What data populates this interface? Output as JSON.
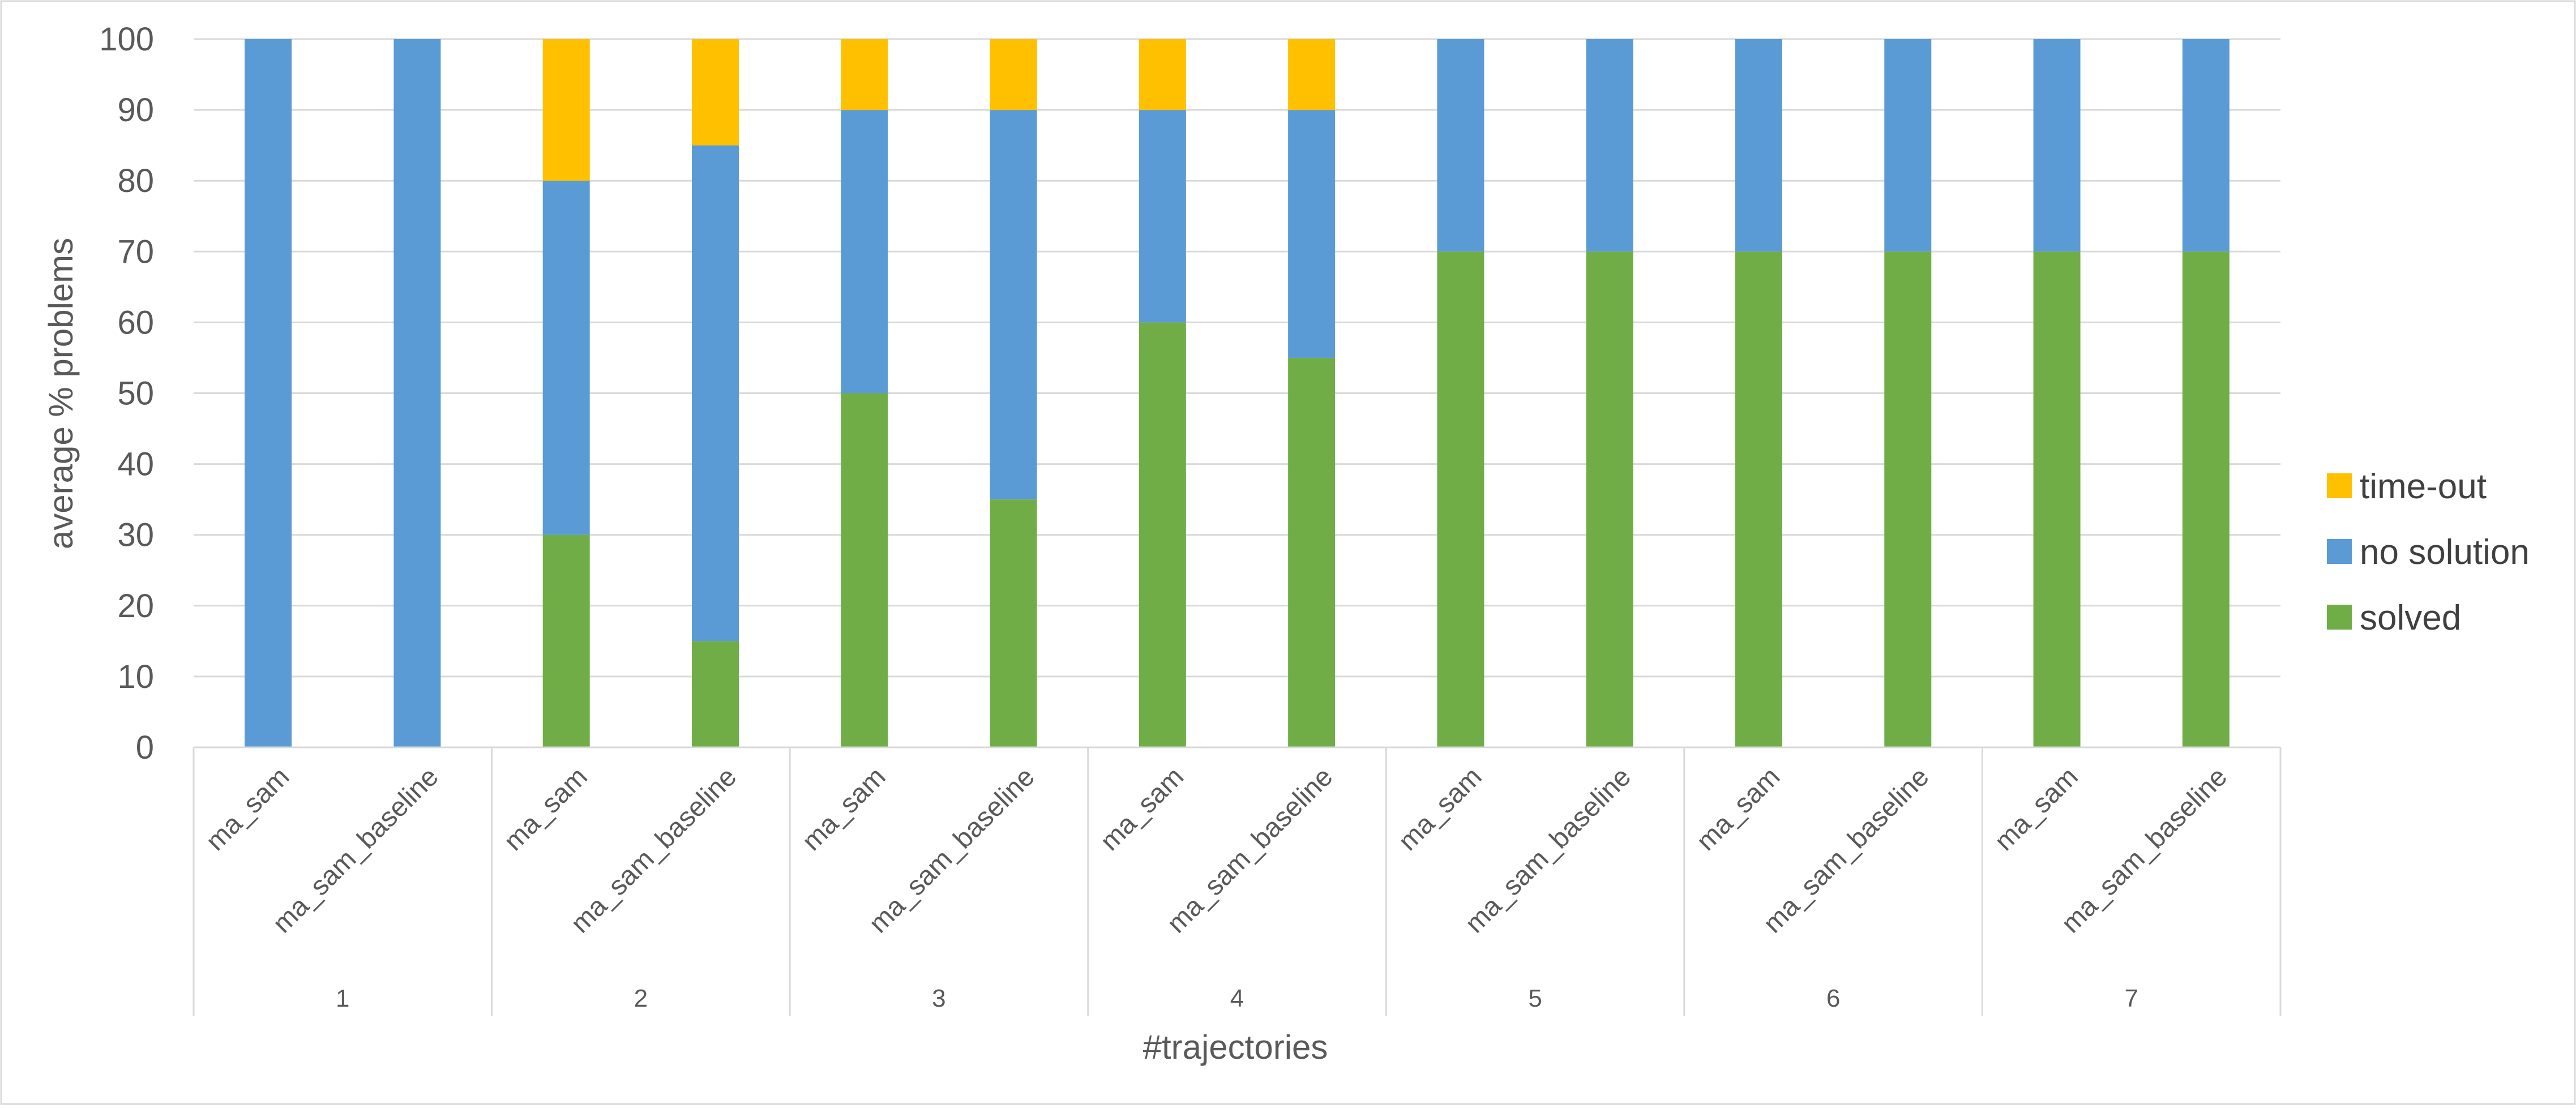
{
  "chart_data": {
    "type": "bar",
    "stacked": true,
    "title": "",
    "xlabel": "#trajectories",
    "ylabel": "average % problems",
    "ylim": [
      0,
      100
    ],
    "yticks": [
      "0",
      "10",
      "20",
      "30",
      "40",
      "50",
      "60",
      "70",
      "80",
      "90",
      "100"
    ],
    "grid": true,
    "legend_position": "right",
    "groups": [
      "1",
      "2",
      "3",
      "4",
      "5",
      "6",
      "7"
    ],
    "categories": [
      "ma_sam",
      "ma_sam_baseline",
      "ma_sam",
      "ma_sam_baseline",
      "ma_sam",
      "ma_sam_baseline",
      "ma_sam",
      "ma_sam_baseline",
      "ma_sam",
      "ma_sam_baseline",
      "ma_sam",
      "ma_sam_baseline",
      "ma_sam",
      "ma_sam_baseline"
    ],
    "series": [
      {
        "name": "solved",
        "color": "#70AD47",
        "values": [
          0,
          0,
          30,
          15,
          50,
          35,
          60,
          55,
          70,
          70,
          70,
          70,
          70,
          70
        ]
      },
      {
        "name": "no solution",
        "color": "#5B9BD5",
        "values": [
          100,
          100,
          50,
          70,
          40,
          55,
          30,
          35,
          30,
          30,
          30,
          30,
          30,
          30
        ]
      },
      {
        "name": "time-out",
        "color": "#FFC000",
        "values": [
          0,
          0,
          20,
          15,
          10,
          10,
          10,
          10,
          0,
          0,
          0,
          0,
          0,
          0
        ]
      }
    ],
    "legend_order": [
      "time-out",
      "no solution",
      "solved"
    ]
  }
}
